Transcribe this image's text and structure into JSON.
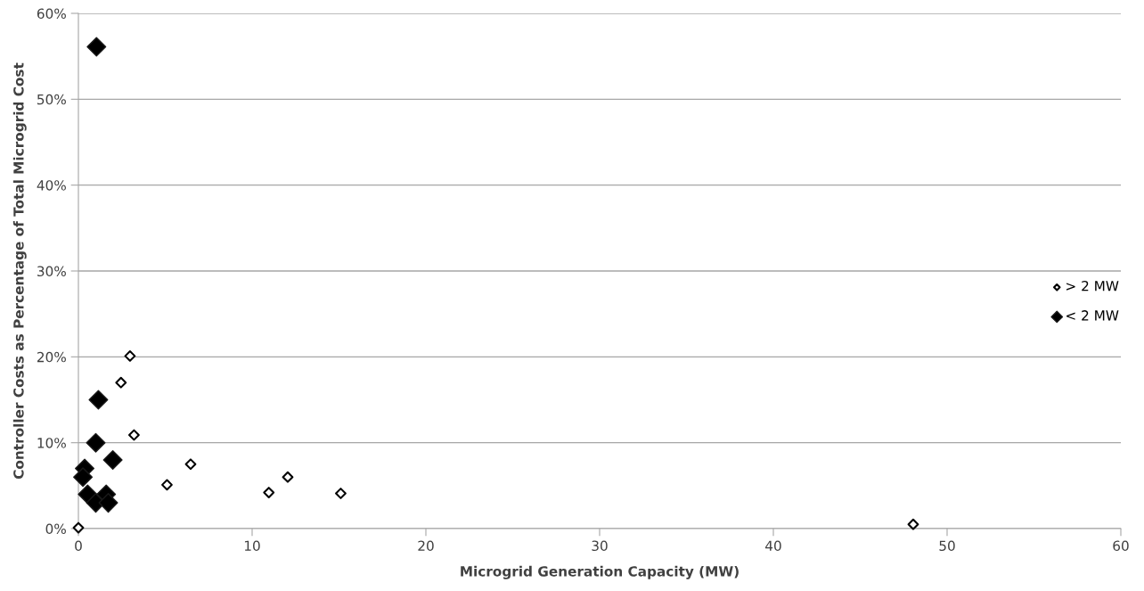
{
  "chart_data": {
    "type": "scatter",
    "xlabel": "Microgrid Generation Capacity (MW)",
    "ylabel": "Controller Costs as Percentage of Total Microgrid Cost",
    "xlim": [
      0,
      60
    ],
    "xticks": [
      0,
      10,
      20,
      30,
      40,
      50,
      60
    ],
    "ylim": [
      0,
      60
    ],
    "yticks": [
      {
        "value": 0,
        "label": "0%"
      },
      {
        "value": 10,
        "label": "10%"
      },
      {
        "value": 20,
        "label": "20%"
      },
      {
        "value": 30,
        "label": "30%"
      },
      {
        "value": 40,
        "label": "40%"
      },
      {
        "value": 50,
        "label": "50%"
      },
      {
        "value": 60,
        "label": "60%"
      }
    ],
    "grid": "y",
    "legend": "right",
    "marker": "diamond",
    "series": [
      {
        "name": "> 2 MW",
        "color": "#ffffff",
        "x": [
          0,
          2.97,
          2.45,
          3.2,
          5.1,
          6.46,
          10.96,
          12.05,
          15.1,
          48.05
        ],
        "values": [
          0.1,
          20.1,
          17.0,
          10.9,
          5.1,
          7.5,
          4.2,
          6.0,
          4.1,
          0.5
        ]
      },
      {
        "name": "< 2 MW",
        "color": "#000000",
        "x": [
          1.15,
          1.0,
          1.98,
          0.36,
          0.26,
          0.53,
          1.6,
          1.0,
          1.72,
          1.04
        ],
        "values": [
          15.0,
          10.0,
          8.0,
          7.0,
          6.0,
          4.0,
          4.0,
          3.0,
          3.0,
          56.1
        ]
      }
    ]
  }
}
